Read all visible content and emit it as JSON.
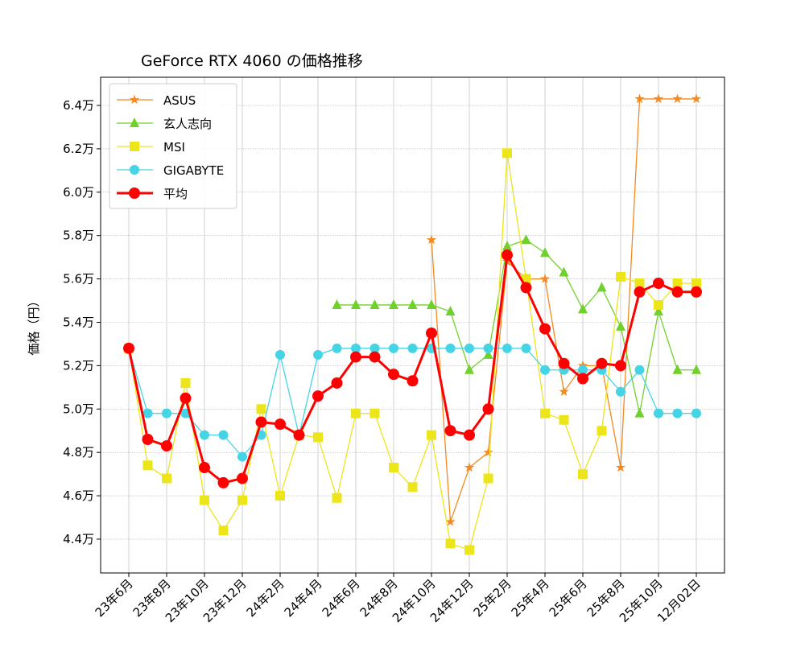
{
  "chart_data": {
    "type": "line",
    "title": "GeForce RTX 4060 の価格推移",
    "xlabel": "",
    "ylabel": "価格（円）",
    "ylim": [
      4.244,
      6.53
    ],
    "yticks": [
      4.4,
      4.6,
      4.8,
      5.0,
      5.2,
      5.4,
      5.6,
      5.8,
      6.0,
      6.2,
      6.4
    ],
    "ytick_labels": [
      "4.4万",
      "4.6万",
      "4.8万",
      "5.0万",
      "5.2万",
      "5.4万",
      "5.6万",
      "5.8万",
      "6.0万",
      "6.2万",
      "6.4万"
    ],
    "x": [
      "23年6月",
      "23年7月",
      "23年8月",
      "23年9月",
      "23年10月",
      "23年11月",
      "23年12月",
      "24年1月",
      "24年2月",
      "24年3月",
      "24年4月",
      "24年5月",
      "24年6月",
      "24年7月",
      "24年8月",
      "24年9月",
      "24年10月",
      "24年11月",
      "24年12月",
      "25年1月",
      "25年2月",
      "25年3月",
      "25年4月",
      "25年5月",
      "25年6月",
      "25年7月",
      "25年8月",
      "25年9月",
      "25年10月",
      "25年11月",
      "12月02日"
    ],
    "xtick_labels": [
      "23年6月",
      "23年8月",
      "23年10月",
      "23年12月",
      "24年2月",
      "24年4月",
      "24年6月",
      "24年8月",
      "24年10月",
      "24年12月",
      "25年2月",
      "25年4月",
      "25年6月",
      "25年8月",
      "25年10月",
      "12月02日"
    ],
    "xtick_index": [
      0,
      2,
      4,
      6,
      8,
      10,
      12,
      14,
      16,
      18,
      20,
      22,
      24,
      26,
      28,
      30
    ],
    "grid": true,
    "legend_placement": "upper-left",
    "series": [
      {
        "name": "ASUS",
        "color": "#f5891f",
        "marker": "star",
        "line_width": 1.3,
        "values": [
          null,
          null,
          null,
          null,
          null,
          null,
          null,
          null,
          null,
          null,
          null,
          null,
          null,
          null,
          null,
          null,
          5.78,
          4.48,
          4.73,
          4.8,
          5.68,
          5.6,
          5.6,
          5.08,
          5.2,
          5.2,
          4.73,
          6.43,
          6.43,
          6.43,
          6.43
        ]
      },
      {
        "name": "玄人志向",
        "color": "#71d12c",
        "marker": "triangle",
        "line_width": 1.3,
        "values": [
          null,
          null,
          null,
          null,
          null,
          null,
          null,
          null,
          null,
          null,
          null,
          5.48,
          5.48,
          5.48,
          5.48,
          5.48,
          5.48,
          5.45,
          5.18,
          5.25,
          5.75,
          5.78,
          5.72,
          5.63,
          5.46,
          5.56,
          5.38,
          4.98,
          5.45,
          5.18,
          5.18
        ]
      },
      {
        "name": "MSI",
        "color": "#ece51a",
        "marker": "square",
        "line_width": 1.3,
        "values": [
          5.28,
          4.74,
          4.68,
          5.12,
          4.58,
          4.44,
          4.58,
          5.0,
          4.6,
          4.88,
          4.87,
          4.59,
          4.98,
          4.98,
          4.73,
          4.64,
          4.88,
          4.38,
          4.35,
          4.68,
          6.18,
          5.6,
          4.98,
          4.95,
          4.7,
          4.9,
          5.61,
          5.58,
          5.48,
          5.58,
          5.58
        ]
      },
      {
        "name": "GIGABYTE",
        "color": "#45d4e6",
        "marker": "circle",
        "line_width": 1.3,
        "values": [
          5.28,
          4.98,
          4.98,
          4.98,
          4.88,
          4.88,
          4.78,
          4.88,
          5.25,
          4.88,
          5.25,
          5.28,
          5.28,
          5.28,
          5.28,
          5.28,
          5.28,
          5.28,
          5.28,
          5.28,
          5.28,
          5.28,
          5.18,
          5.18,
          5.18,
          5.18,
          5.08,
          5.18,
          4.98,
          4.98,
          4.98
        ]
      },
      {
        "name": "平均",
        "color": "#ff0000",
        "marker": "circle",
        "line_width": 3,
        "values": [
          5.28,
          4.86,
          4.83,
          5.05,
          4.73,
          4.66,
          4.68,
          4.94,
          4.93,
          4.88,
          5.06,
          5.12,
          5.24,
          5.24,
          5.16,
          5.13,
          5.35,
          4.9,
          4.88,
          5.0,
          5.71,
          5.56,
          5.37,
          5.21,
          5.14,
          5.21,
          5.2,
          5.54,
          5.58,
          5.54,
          5.54
        ]
      }
    ]
  }
}
